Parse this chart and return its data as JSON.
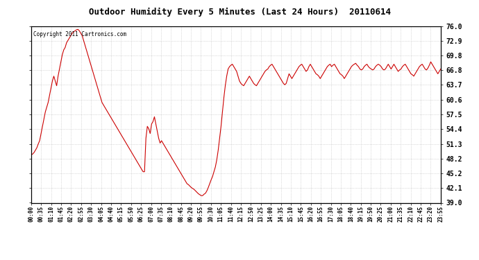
{
  "title": "Outdoor Humidity Every 5 Minutes (Last 24 Hours)  20110614",
  "copyright": "Copyright 2011 Cartronics.com",
  "line_color": "#cc0000",
  "bg_color": "#ffffff",
  "plot_bg_color": "#ffffff",
  "grid_color": "#aaaaaa",
  "yticks": [
    39.0,
    42.1,
    45.2,
    48.2,
    51.3,
    54.4,
    57.5,
    60.6,
    63.7,
    66.8,
    69.8,
    72.9,
    76.0
  ],
  "ylim": [
    39.0,
    76.0
  ],
  "xtick_labels": [
    "00:00",
    "00:35",
    "01:10",
    "01:45",
    "02:20",
    "02:55",
    "03:30",
    "04:05",
    "04:40",
    "05:15",
    "05:50",
    "06:25",
    "07:00",
    "07:35",
    "08:10",
    "08:45",
    "09:20",
    "09:55",
    "10:30",
    "11:05",
    "11:40",
    "12:15",
    "12:50",
    "13:25",
    "14:00",
    "14:35",
    "15:10",
    "15:45",
    "16:20",
    "16:55",
    "17:30",
    "18:05",
    "18:40",
    "19:15",
    "19:50",
    "20:25",
    "21:00",
    "21:35",
    "22:10",
    "22:45",
    "23:20",
    "23:55"
  ],
  "humidity_data": [
    49.0,
    49.2,
    49.5,
    50.0,
    50.5,
    51.3,
    52.0,
    53.5,
    55.0,
    56.5,
    58.0,
    59.0,
    60.0,
    61.5,
    63.0,
    64.5,
    65.5,
    64.5,
    63.5,
    65.5,
    67.0,
    68.5,
    70.0,
    71.0,
    71.5,
    72.5,
    73.0,
    73.5,
    74.0,
    74.5,
    74.8,
    75.0,
    75.2,
    75.3,
    75.0,
    74.5,
    74.0,
    73.0,
    72.0,
    71.0,
    70.0,
    69.0,
    68.0,
    67.0,
    66.0,
    65.0,
    64.0,
    63.0,
    62.0,
    61.0,
    60.0,
    59.5,
    59.0,
    58.5,
    58.0,
    57.5,
    57.0,
    56.5,
    56.0,
    55.5,
    55.0,
    54.5,
    54.0,
    53.5,
    53.0,
    52.5,
    52.0,
    51.5,
    51.0,
    50.5,
    50.0,
    49.5,
    49.0,
    48.5,
    48.0,
    47.5,
    47.0,
    46.5,
    46.0,
    45.5,
    45.5,
    52.5,
    55.0,
    54.5,
    53.5,
    55.5,
    56.0,
    57.0,
    55.5,
    54.0,
    52.5,
    51.5,
    52.0,
    51.5,
    51.0,
    50.5,
    50.0,
    49.5,
    49.0,
    48.5,
    48.0,
    47.5,
    47.0,
    46.5,
    46.0,
    45.5,
    45.0,
    44.5,
    44.0,
    43.5,
    43.0,
    42.8,
    42.5,
    42.2,
    42.0,
    41.8,
    41.5,
    41.2,
    40.9,
    40.7,
    40.5,
    40.5,
    40.8,
    41.0,
    41.5,
    42.2,
    43.0,
    43.8,
    44.5,
    45.5,
    46.5,
    48.0,
    50.0,
    52.5,
    55.0,
    58.0,
    61.0,
    63.5,
    65.5,
    67.0,
    67.5,
    67.8,
    68.0,
    67.5,
    67.0,
    66.5,
    65.5,
    64.5,
    64.0,
    63.7,
    63.5,
    64.0,
    64.5,
    65.0,
    65.5,
    65.0,
    64.5,
    64.0,
    63.7,
    63.5,
    64.0,
    64.5,
    65.0,
    65.5,
    66.0,
    66.5,
    66.8,
    67.0,
    67.5,
    67.8,
    68.0,
    67.5,
    67.0,
    66.5,
    66.0,
    65.5,
    65.0,
    64.5,
    64.0,
    63.7,
    64.0,
    65.0,
    66.0,
    65.5,
    65.0,
    65.5,
    66.0,
    66.5,
    67.0,
    67.5,
    67.8,
    68.0,
    67.5,
    67.0,
    66.5,
    66.8,
    67.5,
    68.0,
    67.5,
    67.0,
    66.5,
    66.0,
    65.8,
    65.5,
    65.0,
    65.5,
    66.0,
    66.5,
    67.0,
    67.5,
    67.8,
    68.0,
    67.5,
    67.8,
    68.0,
    67.5,
    67.0,
    66.5,
    66.0,
    65.8,
    65.5,
    65.0,
    65.5,
    66.0,
    66.5,
    67.0,
    67.5,
    67.8,
    68.0,
    68.2,
    67.8,
    67.5,
    67.0,
    66.8,
    67.0,
    67.5,
    67.8,
    68.0,
    67.5,
    67.2,
    67.0,
    66.8,
    67.0,
    67.5,
    67.8,
    68.0,
    67.8,
    67.5,
    67.0,
    66.8,
    67.0,
    67.5,
    68.0,
    67.5,
    67.0,
    67.5,
    68.0,
    67.5,
    67.0,
    66.5,
    66.8,
    67.0,
    67.5,
    67.8,
    68.0,
    67.5,
    67.0,
    66.5,
    66.0,
    65.8,
    65.5,
    66.0,
    66.5,
    67.0,
    67.5,
    67.8,
    68.0,
    67.5,
    67.0,
    66.8,
    67.2,
    67.8,
    68.5,
    68.0,
    67.5,
    67.0,
    66.5,
    66.0,
    66.5,
    67.0
  ]
}
